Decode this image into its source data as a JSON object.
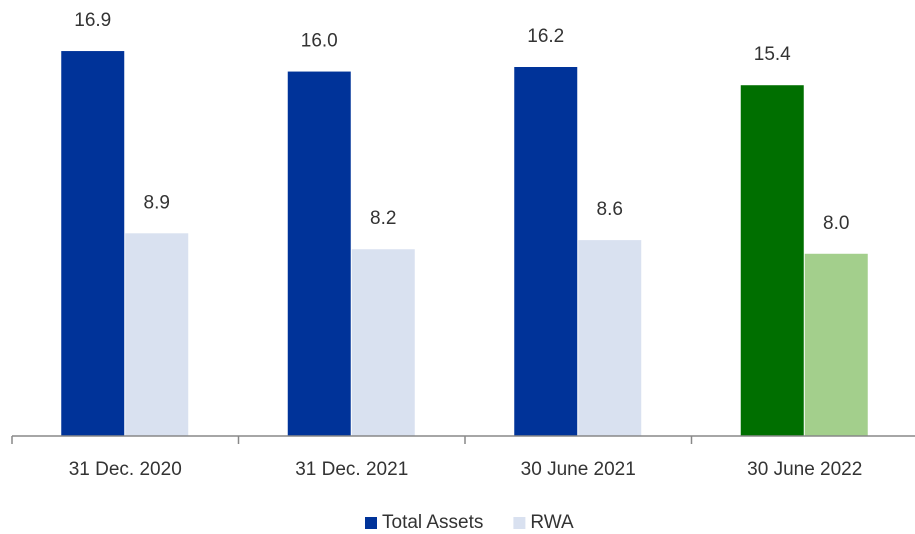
{
  "chart_data": {
    "type": "bar",
    "categories": [
      "31 Dec. 2020",
      "31 Dec. 2021",
      "30 June 2021",
      "30 June 2022"
    ],
    "series": [
      {
        "name": "Total Assets",
        "color": "#003399",
        "colors": [
          "#003399",
          "#003399",
          "#003399",
          "#006f00"
        ],
        "values": [
          16.9,
          16.0,
          16.2,
          15.4
        ],
        "value_labels": [
          "16.9",
          "16.0",
          "16.2",
          "15.4"
        ]
      },
      {
        "name": "RWA",
        "color": "#d9e1f0",
        "colors": [
          "#d9e1f0",
          "#d9e1f0",
          "#d9e1f0",
          "#a3cf8c"
        ],
        "values": [
          8.9,
          8.2,
          8.6,
          8.0
        ],
        "value_labels": [
          "8.9",
          "8.2",
          "8.6",
          "8.0"
        ]
      }
    ],
    "ylim": [
      0,
      18
    ],
    "legend": "bottom"
  }
}
